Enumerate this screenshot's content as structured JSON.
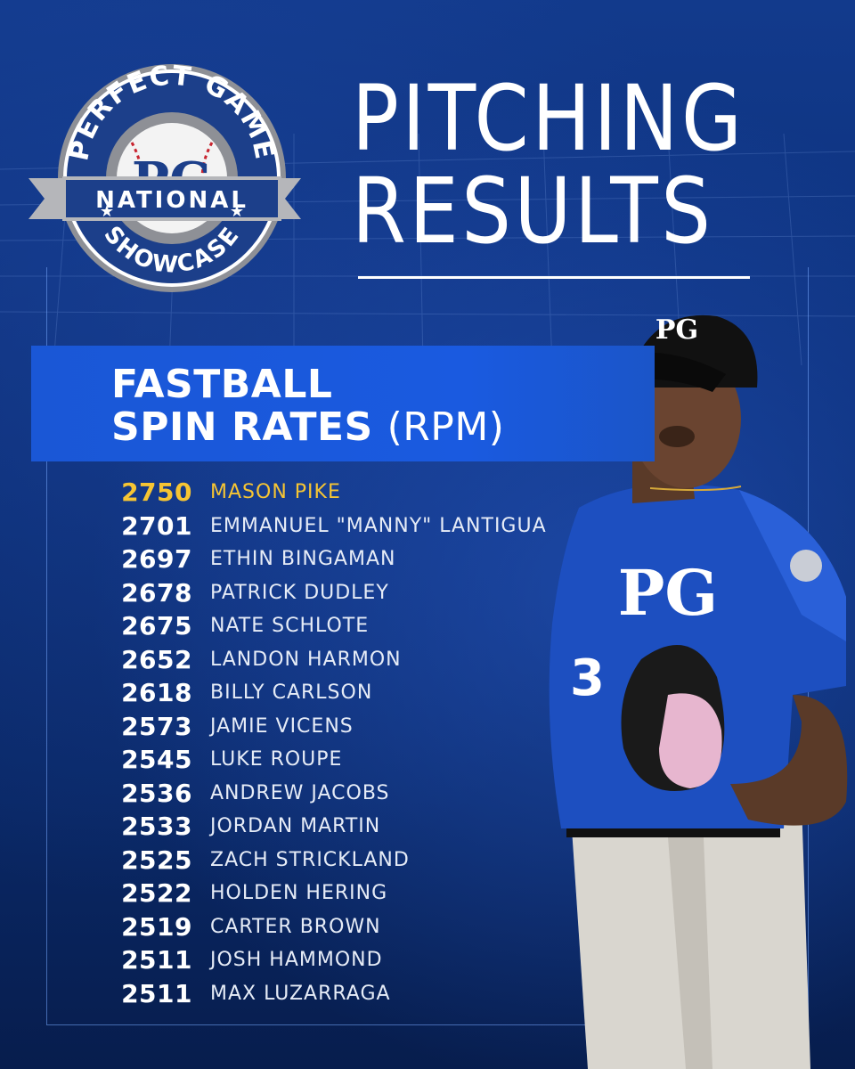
{
  "logo": {
    "top_text": "PERFECT GAME",
    "monogram": "PG",
    "band_text": "NATIONAL",
    "bottom_text": "SHOWCASE"
  },
  "title": {
    "line1": "PITCHING",
    "line2": "RESULTS"
  },
  "banner": {
    "line1": "FASTBALL",
    "line2": "SPIN RATES",
    "unit": "(RPM)"
  },
  "colors": {
    "leader": "#f6c533",
    "banner": "#1a57d6",
    "background": "#0b2a6e"
  },
  "jersey": {
    "monogram": "PG",
    "number": "3"
  },
  "results": [
    {
      "rpm": "2750",
      "name": "MASON PIKE"
    },
    {
      "rpm": "2701",
      "name": "EMMANUEL \"MANNY\" LANTIGUA"
    },
    {
      "rpm": "2697",
      "name": "ETHIN BINGAMAN"
    },
    {
      "rpm": "2678",
      "name": "PATRICK DUDLEY"
    },
    {
      "rpm": "2675",
      "name": "NATE SCHLOTE"
    },
    {
      "rpm": "2652",
      "name": "LANDON HARMON"
    },
    {
      "rpm": "2618",
      "name": "BILLY CARLSON"
    },
    {
      "rpm": "2573",
      "name": "JAMIE VICENS"
    },
    {
      "rpm": "2545",
      "name": "LUKE ROUPE"
    },
    {
      "rpm": "2536",
      "name": "ANDREW JACOBS"
    },
    {
      "rpm": "2533",
      "name": "JORDAN MARTIN"
    },
    {
      "rpm": "2525",
      "name": "ZACH STRICKLAND"
    },
    {
      "rpm": "2522",
      "name": "HOLDEN HERING"
    },
    {
      "rpm": "2519",
      "name": "CARTER BROWN"
    },
    {
      "rpm": "2511",
      "name": "JOSH HAMMOND"
    },
    {
      "rpm": "2511",
      "name": "MAX LUZARRAGA"
    }
  ]
}
